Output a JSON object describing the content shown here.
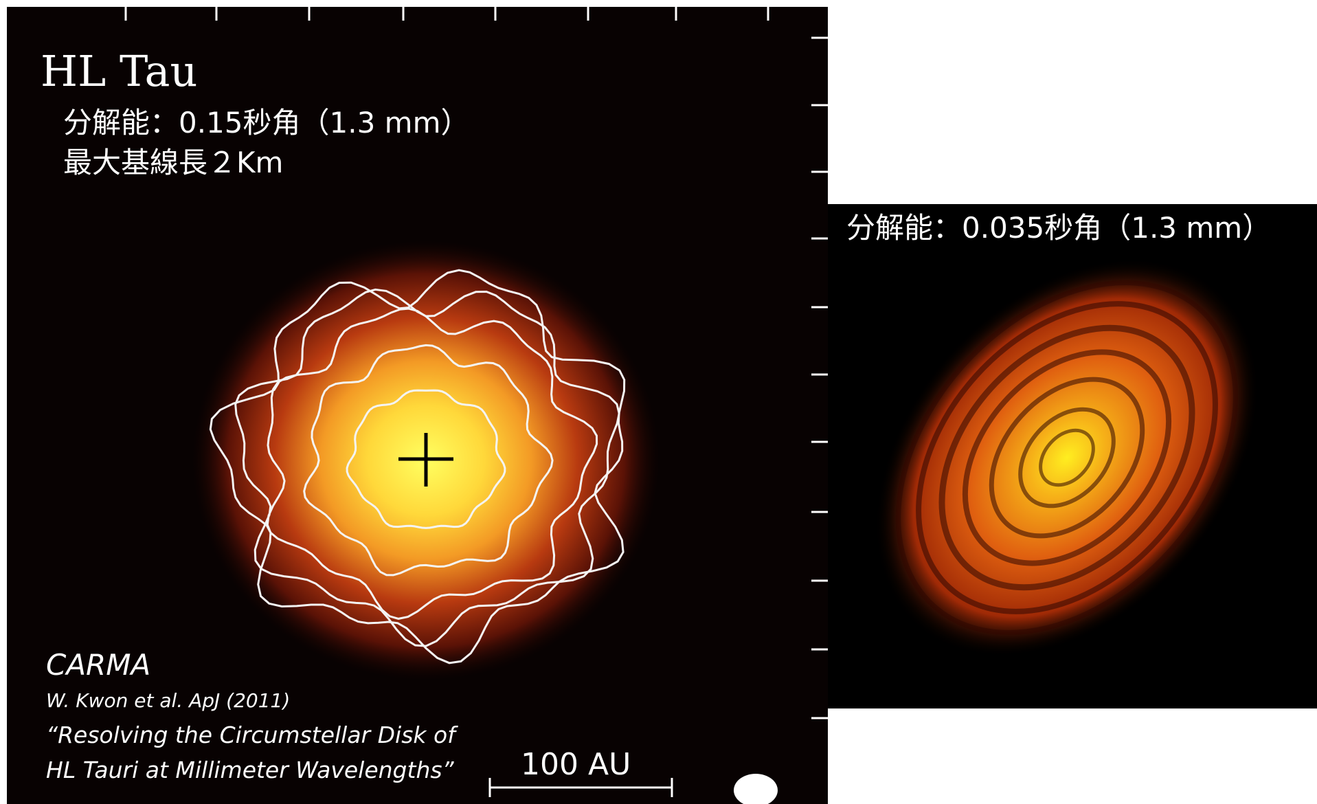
{
  "left_panel": {
    "title": "HL Tau",
    "resolution": "分解能：0.15秒角（1.3 mm）",
    "baseline": "最大基線長２Km",
    "instrument": "CARMA",
    "reference": "W. Kwon et al. ApJ (2011)",
    "paper_title_line1": "“Resolving the Circumstellar Disk of",
    "paper_title_line2": "HL Tauri at Millimeter Wavelengths”",
    "scale_bar": "100 AU"
  },
  "right_panel": {
    "resolution": "分解能：0.035秒角（1.3 mm）"
  }
}
